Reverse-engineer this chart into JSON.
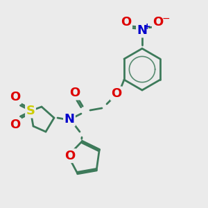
{
  "bg_color": "#ebebeb",
  "bond_color": "#3d7a5a",
  "bond_width": 2.0,
  "atom_colors": {
    "O": "#dd0000",
    "N": "#0000cc",
    "S": "#cccc00",
    "C": "#3d7a5a"
  },
  "font_size_atom": 12,
  "figsize": [
    3.0,
    3.0
  ],
  "dpi": 100
}
